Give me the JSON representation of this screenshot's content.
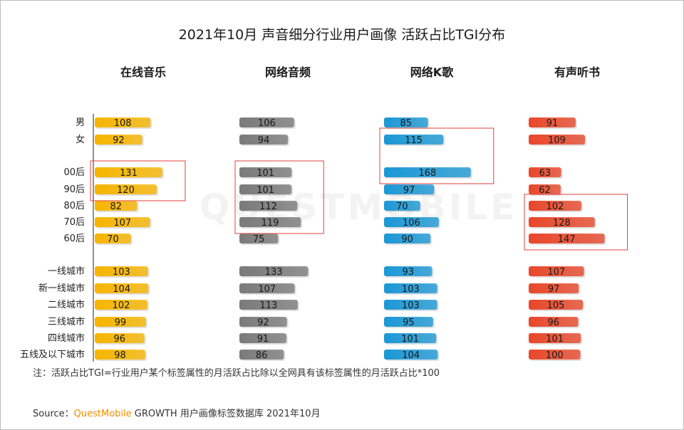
{
  "chart_data": {
    "type": "bar",
    "title": "2021年10月 声音细分行业用户画像 活跃占比TGI分布",
    "categories": [
      "男",
      "女",
      "00后",
      "90后",
      "80后",
      "70后",
      "60后",
      "一线城市",
      "新一线城市",
      "二线城市",
      "三线城市",
      "四线城市",
      "五线及以下城市"
    ],
    "series": [
      {
        "name": "在线音乐",
        "color": "#f7b500",
        "values": [
          108,
          92,
          131,
          120,
          82,
          107,
          70,
          103,
          104,
          102,
          99,
          96,
          98
        ]
      },
      {
        "name": "网络音频",
        "color": "#7a7a7a",
        "values": [
          106,
          94,
          101,
          101,
          112,
          119,
          75,
          133,
          107,
          113,
          92,
          91,
          86
        ]
      },
      {
        "name": "网络K歌",
        "color": "#1b98d5",
        "values": [
          85,
          115,
          168,
          97,
          70,
          106,
          90,
          93,
          103,
          103,
          95,
          101,
          104
        ]
      },
      {
        "name": "有声听书",
        "color": "#e8472a",
        "values": [
          91,
          109,
          63,
          62,
          102,
          128,
          147,
          107,
          97,
          105,
          96,
          101,
          100
        ]
      }
    ],
    "highlights": [
      {
        "series": 0,
        "from": 2,
        "to": 3
      },
      {
        "series": 1,
        "from": 2,
        "to": 5
      },
      {
        "series": 2,
        "from": 1,
        "to": 2
      },
      {
        "series": 3,
        "from": 4,
        "to": 6
      }
    ]
  },
  "note": "注：活跃占比TGI=行业用户某个标签属性的月活跃占比除以全网具有该标签属性的月活跃占比*100",
  "source": {
    "prefix": "Source：",
    "brand": "QuestMobile",
    "suffix": " GROWTH 用户画像标签数据库 2021年10月"
  },
  "watermark": "QUESTMOBILE"
}
